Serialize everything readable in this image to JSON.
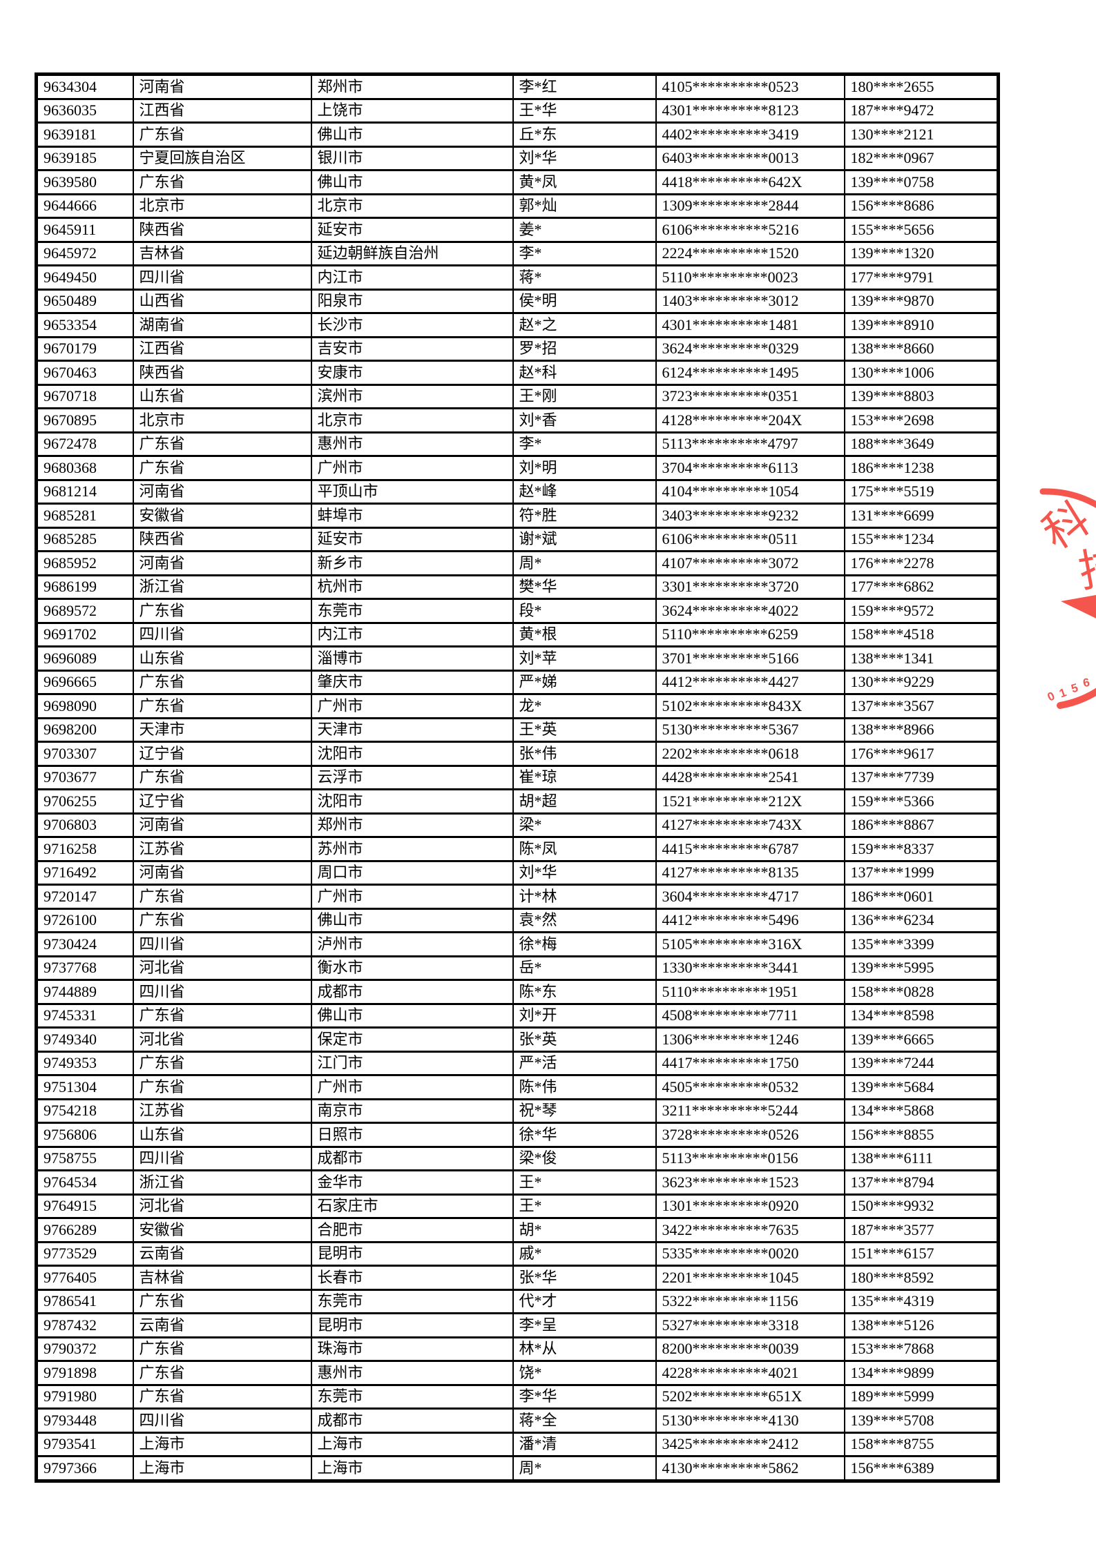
{
  "page": {
    "background": "#ffffff",
    "border_color": "#000000"
  },
  "table": {
    "column_keys": [
      "id",
      "province",
      "city",
      "name",
      "id_number",
      "phone"
    ],
    "rows": [
      [
        "9634304",
        "河南省",
        "郑州市",
        "李*红",
        "4105**********0523",
        "180****2655"
      ],
      [
        "9636035",
        "江西省",
        "上饶市",
        "王*华",
        "4301**********8123",
        "187****9472"
      ],
      [
        "9639181",
        "广东省",
        "佛山市",
        "丘*东",
        "4402**********3419",
        "130****2121"
      ],
      [
        "9639185",
        "宁夏回族自治区",
        "银川市",
        "刘*华",
        "6403**********0013",
        "182****0967"
      ],
      [
        "9639580",
        "广东省",
        "佛山市",
        "黄*凤",
        "4418**********642X",
        "139****0758"
      ],
      [
        "9644666",
        "北京市",
        "北京市",
        "郭*灿",
        "1309**********2844",
        "156****8686"
      ],
      [
        "9645911",
        "陕西省",
        "延安市",
        "姜*",
        "6106**********5216",
        "155****5656"
      ],
      [
        "9645972",
        "吉林省",
        "延边朝鲜族自治州",
        "李*",
        "2224**********1520",
        "139****1320"
      ],
      [
        "9649450",
        "四川省",
        "内江市",
        "蒋*",
        "5110**********0023",
        "177****9791"
      ],
      [
        "9650489",
        "山西省",
        "阳泉市",
        "侯*明",
        "1403**********3012",
        "139****9870"
      ],
      [
        "9653354",
        "湖南省",
        "长沙市",
        "赵*之",
        "4301**********1481",
        "139****8910"
      ],
      [
        "9670179",
        "江西省",
        "吉安市",
        "罗*招",
        "3624**********0329",
        "138****8660"
      ],
      [
        "9670463",
        "陕西省",
        "安康市",
        "赵*科",
        "6124**********1495",
        "130****1006"
      ],
      [
        "9670718",
        "山东省",
        "滨州市",
        "王*刚",
        "3723**********0351",
        "139****8803"
      ],
      [
        "9670895",
        "北京市",
        "北京市",
        "刘*香",
        "4128**********204X",
        "153****2698"
      ],
      [
        "9672478",
        "广东省",
        "惠州市",
        "李*",
        "5113**********4797",
        "188****3649"
      ],
      [
        "9680368",
        "广东省",
        "广州市",
        "刘*明",
        "3704**********6113",
        "186****1238"
      ],
      [
        "9681214",
        "河南省",
        "平顶山市",
        "赵*峰",
        "4104**********1054",
        "175****5519"
      ],
      [
        "9685281",
        "安徽省",
        "蚌埠市",
        "符*胜",
        "3403**********9232",
        "131****6699"
      ],
      [
        "9685285",
        "陕西省",
        "延安市",
        "谢*斌",
        "6106**********0511",
        "155****1234"
      ],
      [
        "9685952",
        "河南省",
        "新乡市",
        "周*",
        "4107**********3072",
        "176****2278"
      ],
      [
        "9686199",
        "浙江省",
        "杭州市",
        "樊*华",
        "3301**********3720",
        "177****6862"
      ],
      [
        "9689572",
        "广东省",
        "东莞市",
        "段*",
        "3624**********4022",
        "159****9572"
      ],
      [
        "9691702",
        "四川省",
        "内江市",
        "黄*根",
        "5110**********6259",
        "158****4518"
      ],
      [
        "9696089",
        "山东省",
        "淄博市",
        "刘*苹",
        "3701**********5166",
        "138****1341"
      ],
      [
        "9696665",
        "广东省",
        "肇庆市",
        "严*娣",
        "4412**********4427",
        "130****9229"
      ],
      [
        "9698090",
        "广东省",
        "广州市",
        "龙*",
        "5102**********843X",
        "137****3567"
      ],
      [
        "9698200",
        "天津市",
        "天津市",
        "王*英",
        "5130**********5367",
        "138****8966"
      ],
      [
        "9703307",
        "辽宁省",
        "沈阳市",
        "张*伟",
        "2202**********0618",
        "176****9617"
      ],
      [
        "9703677",
        "广东省",
        "云浮市",
        "崔*琼",
        "4428**********2541",
        "137****7739"
      ],
      [
        "9706255",
        "辽宁省",
        "沈阳市",
        "胡*超",
        "1521**********212X",
        "159****5366"
      ],
      [
        "9706803",
        "河南省",
        "郑州市",
        "梁*",
        "4127**********743X",
        "186****8867"
      ],
      [
        "9716258",
        "江苏省",
        "苏州市",
        "陈*凤",
        "4415**********6787",
        "159****8337"
      ],
      [
        "9716492",
        "河南省",
        "周口市",
        "刘*华",
        "4127**********8135",
        "137****1999"
      ],
      [
        "9720147",
        "广东省",
        "广州市",
        "计*林",
        "3604**********4717",
        "186****0601"
      ],
      [
        "9726100",
        "广东省",
        "佛山市",
        "袁*然",
        "4412**********5496",
        "136****6234"
      ],
      [
        "9730424",
        "四川省",
        "泸州市",
        "徐*梅",
        "5105**********316X",
        "135****3399"
      ],
      [
        "9737768",
        "河北省",
        "衡水市",
        "岳*",
        "1330**********3441",
        "139****5995"
      ],
      [
        "9744889",
        "四川省",
        "成都市",
        "陈*东",
        "5110**********1951",
        "158****0828"
      ],
      [
        "9745331",
        "广东省",
        "佛山市",
        "刘*开",
        "4508**********7711",
        "134****8598"
      ],
      [
        "9749340",
        "河北省",
        "保定市",
        "张*英",
        "1306**********1246",
        "139****6665"
      ],
      [
        "9749353",
        "广东省",
        "江门市",
        "严*活",
        "4417**********1750",
        "139****7244"
      ],
      [
        "9751304",
        "广东省",
        "广州市",
        "陈*伟",
        "4505**********0532",
        "139****5684"
      ],
      [
        "9754218",
        "江苏省",
        "南京市",
        "祝*琴",
        "3211**********5244",
        "134****5868"
      ],
      [
        "9756806",
        "山东省",
        "日照市",
        "徐*华",
        "3728**********0526",
        "156****8855"
      ],
      [
        "9758755",
        "四川省",
        "成都市",
        "梁*俊",
        "5113**********0156",
        "138****6111"
      ],
      [
        "9764534",
        "浙江省",
        "金华市",
        "王*",
        "3623**********1523",
        "137****8794"
      ],
      [
        "9764915",
        "河北省",
        "石家庄市",
        "王*",
        "1301**********0920",
        "150****9932"
      ],
      [
        "9766289",
        "安徽省",
        "合肥市",
        "胡*",
        "3422**********7635",
        "187****3577"
      ],
      [
        "9773529",
        "云南省",
        "昆明市",
        "戚*",
        "5335**********0020",
        "151****6157"
      ],
      [
        "9776405",
        "吉林省",
        "长春市",
        "张*华",
        "2201**********1045",
        "180****8592"
      ],
      [
        "9786541",
        "广东省",
        "东莞市",
        "代*才",
        "5322**********1156",
        "135****4319"
      ],
      [
        "9787432",
        "云南省",
        "昆明市",
        "李*呈",
        "5327**********3318",
        "138****5126"
      ],
      [
        "9790372",
        "广东省",
        "珠海市",
        "林*从",
        "8200**********0039",
        "153****7868"
      ],
      [
        "9791898",
        "广东省",
        "惠州市",
        "饶*",
        "4228**********4021",
        "134****9899"
      ],
      [
        "9791980",
        "广东省",
        "东莞市",
        "李*华",
        "5202**********651X",
        "189****5999"
      ],
      [
        "9793448",
        "四川省",
        "成都市",
        "蒋*全",
        "5130**********4130",
        "139****5708"
      ],
      [
        "9793541",
        "上海市",
        "上海市",
        "潘*清",
        "3425**********2412",
        "158****8755"
      ],
      [
        "9797366",
        "上海市",
        "上海市",
        "周*",
        "4130**********5862",
        "156****6389"
      ]
    ]
  },
  "stamp": {
    "color": "#f4554d",
    "char_1": "科",
    "char_2": "技",
    "digits": [
      "0",
      "1",
      "5",
      "6"
    ]
  }
}
